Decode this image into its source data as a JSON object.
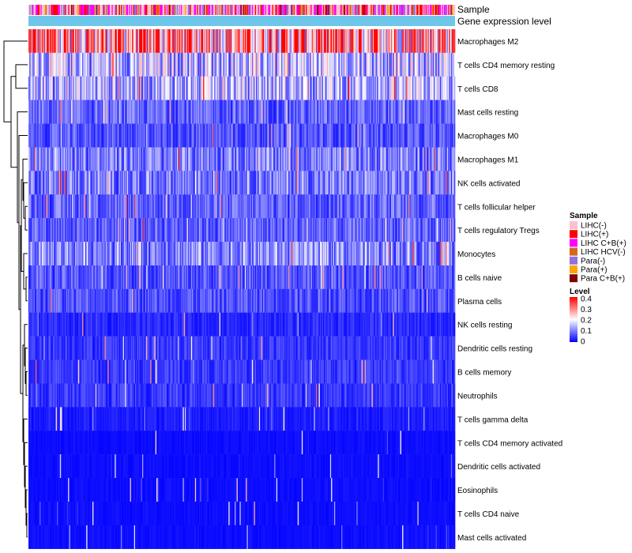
{
  "chart_data": {
    "type": "heatmap",
    "title": "",
    "annotation_rows": [
      {
        "name": "Sample"
      },
      {
        "name": "Gene expression level"
      }
    ],
    "rows": [
      {
        "name": "Macrophages M2",
        "mean": 0.27
      },
      {
        "name": "T cells CD4 memory resting",
        "mean": 0.14
      },
      {
        "name": "T cells CD8",
        "mean": 0.13
      },
      {
        "name": "Mast cells resting",
        "mean": 0.07
      },
      {
        "name": "Macrophages M0",
        "mean": 0.06
      },
      {
        "name": "Macrophages M1",
        "mean": 0.09
      },
      {
        "name": "NK cells activated",
        "mean": 0.09
      },
      {
        "name": "T cells follicular helper",
        "mean": 0.07
      },
      {
        "name": "T cells regulatory  Tregs",
        "mean": 0.07
      },
      {
        "name": "Monocytes",
        "mean": 0.1
      },
      {
        "name": "B cells naive",
        "mean": 0.06
      },
      {
        "name": "Plasma cells",
        "mean": 0.06
      },
      {
        "name": "NK cells resting",
        "mean": 0.03
      },
      {
        "name": "Dendritic cells resting",
        "mean": 0.04
      },
      {
        "name": "B cells memory",
        "mean": 0.04
      },
      {
        "name": "Neutrophils",
        "mean": 0.04
      },
      {
        "name": "T cells gamma delta",
        "mean": 0.02
      },
      {
        "name": "T cells CD4 memory activated",
        "mean": 0.01
      },
      {
        "name": "Dendritic cells activated",
        "mean": 0.01
      },
      {
        "name": "Eosinophils",
        "mean": 0.01
      },
      {
        "name": "T cells CD4 naive",
        "mean": 0.01
      },
      {
        "name": "Mast cells activated",
        "mean": 0.01
      }
    ],
    "legend": {
      "sample": {
        "title": "Sample",
        "items": [
          {
            "label": "LIHC(-)",
            "color": "#ffc0cb"
          },
          {
            "label": "LIHC(+)",
            "color": "#ff0000"
          },
          {
            "label": "LIHC C+B(+)",
            "color": "#ff00ff"
          },
          {
            "label": "LIHC HCV(-)",
            "color": "#d2691e"
          },
          {
            "label": "Para(-)",
            "color": "#9370db"
          },
          {
            "label": "Para(+)",
            "color": "#ffa500"
          },
          {
            "label": "Para C+B(+)",
            "color": "#800000"
          }
        ]
      },
      "level": {
        "title": "Level",
        "ticks": [
          {
            "label": "0.4",
            "value": 0.4
          },
          {
            "label": "0.3",
            "value": 0.3
          },
          {
            "label": "0.2",
            "value": 0.2
          },
          {
            "label": "0.1",
            "value": 0.1
          },
          {
            "label": "0",
            "value": 0
          }
        ],
        "range": [
          0,
          0.4
        ],
        "colors": [
          "#0000ff",
          "#ffffff",
          "#ff0000"
        ]
      }
    },
    "gene_expression_bar_color": "#6ec6ea",
    "n_samples": 420
  }
}
